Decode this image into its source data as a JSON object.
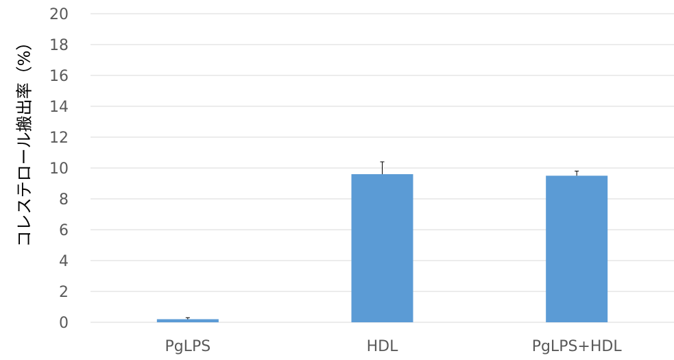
{
  "chart_data": {
    "type": "bar",
    "categories": [
      "PgLPS",
      "HDL",
      "PgLPS+HDL"
    ],
    "values": [
      0.2,
      9.6,
      9.5
    ],
    "error_bars": [
      0.1,
      0.8,
      0.3
    ],
    "ylabel": "コレステロール搬出率（%）",
    "ylim": [
      0,
      20
    ],
    "yticks": [
      "0",
      "2",
      "4",
      "6",
      "8",
      "10",
      "12",
      "14",
      "16",
      "18",
      "20"
    ],
    "grid": true,
    "bar_color": "#5b9bd5",
    "grid_color": "#d9d9d9",
    "tick_label_color": "#595959"
  }
}
